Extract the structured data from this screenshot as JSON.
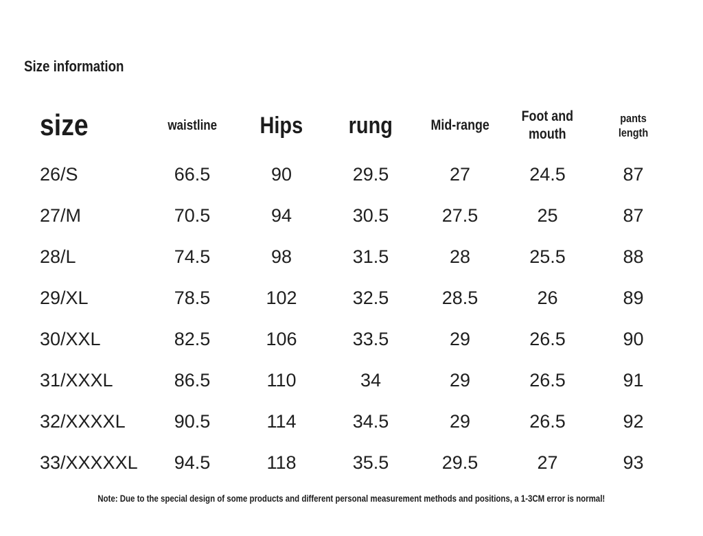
{
  "page": {
    "title": "Size information",
    "note": "Note: Due to the special design of some products and different personal measurement methods and positions, a 1-3CM error is normal!"
  },
  "table": {
    "columns": [
      {
        "key": "size",
        "label": "size"
      },
      {
        "key": "waistline",
        "label": "waistline"
      },
      {
        "key": "hips",
        "label": "Hips"
      },
      {
        "key": "rung",
        "label": "rung"
      },
      {
        "key": "mid_range",
        "label": "Mid-range"
      },
      {
        "key": "foot_and_mouth",
        "label": "Foot and\nmouth"
      },
      {
        "key": "pants_length",
        "label": "pants\nlength"
      }
    ],
    "rows": [
      {
        "size": "26/S",
        "waistline": "66.5",
        "hips": "90",
        "rung": "29.5",
        "mid_range": "27",
        "foot_and_mouth": "24.5",
        "pants_length": "87"
      },
      {
        "size": "27/M",
        "waistline": "70.5",
        "hips": "94",
        "rung": "30.5",
        "mid_range": "27.5",
        "foot_and_mouth": "25",
        "pants_length": "87"
      },
      {
        "size": "28/L",
        "waistline": "74.5",
        "hips": "98",
        "rung": "31.5",
        "mid_range": "28",
        "foot_and_mouth": "25.5",
        "pants_length": "88"
      },
      {
        "size": "29/XL",
        "waistline": "78.5",
        "hips": "102",
        "rung": "32.5",
        "mid_range": "28.5",
        "foot_and_mouth": "26",
        "pants_length": "89"
      },
      {
        "size": "30/XXL",
        "waistline": "82.5",
        "hips": "106",
        "rung": "33.5",
        "mid_range": "29",
        "foot_and_mouth": "26.5",
        "pants_length": "90"
      },
      {
        "size": "31/XXXL",
        "waistline": "86.5",
        "hips": "110",
        "rung": "34",
        "mid_range": "29",
        "foot_and_mouth": "26.5",
        "pants_length": "91"
      },
      {
        "size": "32/XXXXL",
        "waistline": "90.5",
        "hips": "114",
        "rung": "34.5",
        "mid_range": "29",
        "foot_and_mouth": "26.5",
        "pants_length": "92"
      },
      {
        "size": "33/XXXXXL",
        "waistline": "94.5",
        "hips": "118",
        "rung": "35.5",
        "mid_range": "29.5",
        "foot_and_mouth": "27",
        "pants_length": "93"
      }
    ],
    "column_order": [
      "size",
      "waistline",
      "hips",
      "rung",
      "mid_range",
      "foot_and_mouth",
      "pants_length"
    ]
  },
  "colors": {
    "background": "#ffffff",
    "text": "#1c1c1c"
  }
}
